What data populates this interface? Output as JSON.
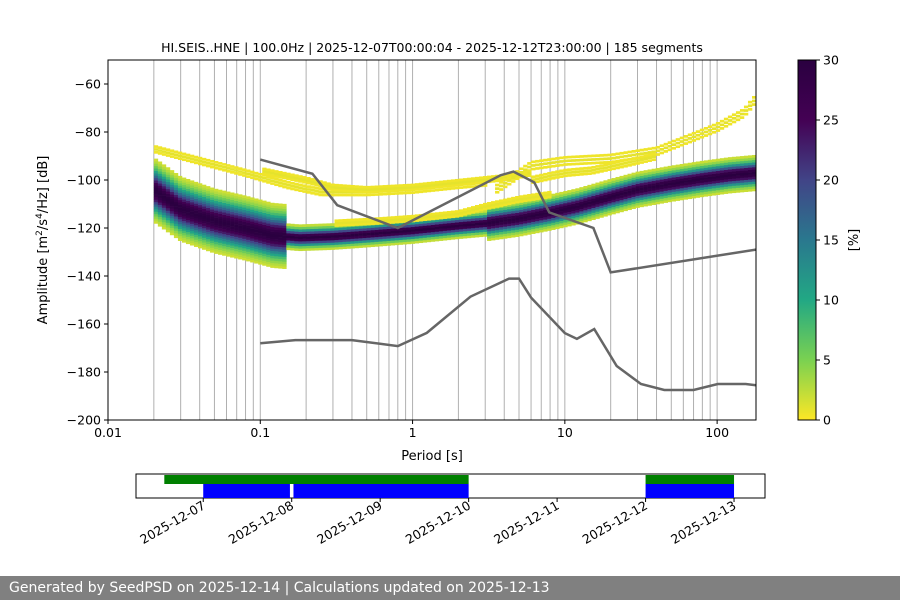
{
  "chart_data": {
    "type": "heatmap",
    "title": "HI.SEIS..HNE | 100.0Hz | 2025-12-07T00:00:04 - 2025-12-12T23:00:00 | 185 segments",
    "xlabel": "Period [s]",
    "ylabel_parts": [
      "Amplitude [m",
      "2",
      "/s",
      "4",
      "/Hz] [dB]"
    ],
    "x_scale": "log",
    "xlim": [
      0.01,
      180
    ],
    "ylim": [
      -200,
      -50
    ],
    "x_ticks": [
      {
        "value": 0.01,
        "label": "0.01"
      },
      {
        "value": 0.1,
        "label": "0.1"
      },
      {
        "value": 1,
        "label": "1"
      },
      {
        "value": 10,
        "label": "10"
      },
      {
        "value": 100,
        "label": "100"
      }
    ],
    "y_ticks": [
      {
        "value": -60,
        "label": "−60"
      },
      {
        "value": -80,
        "label": "−80"
      },
      {
        "value": -100,
        "label": "−100"
      },
      {
        "value": -120,
        "label": "−120"
      },
      {
        "value": -140,
        "label": "−140"
      },
      {
        "value": -160,
        "label": "−160"
      },
      {
        "value": -180,
        "label": "−180"
      },
      {
        "value": -200,
        "label": "−200"
      }
    ],
    "period_gridlines": [
      0.02,
      0.03,
      0.04,
      0.05,
      0.06,
      0.07,
      0.08,
      0.09,
      0.1,
      0.2,
      0.3,
      0.4,
      0.5,
      0.6,
      0.7,
      0.8,
      0.9,
      1,
      2,
      3,
      4,
      5,
      6,
      7,
      8,
      9,
      10,
      20,
      30,
      40,
      50,
      60,
      70,
      80,
      90,
      100
    ],
    "new_high_noise_model": {
      "name": "NHNM",
      "x": [
        0.1,
        0.22,
        0.32,
        0.8,
        3.8,
        4.6,
        6.3,
        7.9,
        15.4,
        20,
        180
      ],
      "y": [
        -91.5,
        -97.4,
        -110.5,
        -120,
        -98,
        -96.5,
        -101,
        -113.5,
        -120,
        -138.5,
        -129
      ]
    },
    "new_low_noise_model": {
      "name": "NLNM",
      "x": [
        0.1,
        0.17,
        0.4,
        0.8,
        1.24,
        2.4,
        4.3,
        5,
        6,
        10,
        12,
        15.6,
        21.9,
        31.6,
        45,
        70,
        101,
        154,
        180
      ],
      "y": [
        -168,
        -166.7,
        -166.7,
        -169.2,
        -163.7,
        -148.6,
        -141.1,
        -141.1,
        -149,
        -163.8,
        -166.2,
        -162.1,
        -177.5,
        -185,
        -187.5,
        -187.5,
        -185,
        -185,
        -185.5
      ]
    },
    "density_ridge": {
      "x": [
        0.02,
        0.03,
        0.05,
        0.08,
        0.12,
        0.18,
        0.3,
        0.5,
        1,
        2,
        3,
        5,
        8,
        12,
        20,
        30,
        50,
        80,
        120,
        180
      ],
      "y": [
        -104,
        -112,
        -117,
        -120,
        -123,
        -124,
        -123.5,
        -122.5,
        -121,
        -119,
        -118,
        -116,
        -113.5,
        -111,
        -107,
        -104,
        -101.5,
        -99.5,
        -98,
        -97
      ]
    },
    "colorbar": {
      "label": "[%]",
      "min": 0,
      "max": 30,
      "ticks": [
        {
          "value": 0,
          "label": "0"
        },
        {
          "value": 5,
          "label": "5"
        },
        {
          "value": 10,
          "label": "10"
        },
        {
          "value": 15,
          "label": "15"
        },
        {
          "value": 20,
          "label": "20"
        },
        {
          "value": 25,
          "label": "25"
        },
        {
          "value": 30,
          "label": "30"
        }
      ],
      "colors": [
        "#fde725",
        "#7ad151",
        "#22a884",
        "#2a788e",
        "#414487",
        "#440154",
        "#2a0040"
      ]
    },
    "coverage": {
      "date_ticks": [
        "2025-12-07",
        "2025-12-08",
        "2025-12-09",
        "2025-12-10",
        "2025-12-11",
        "2025-12-12",
        "2025-12-13"
      ],
      "xlim_days": [
        -0.76,
        6.35
      ],
      "green_bars": [
        [
          -0.44,
          3.0
        ],
        [
          5.0,
          6.0
        ]
      ],
      "blue_bars": [
        [
          0.0,
          0.98
        ],
        [
          1.02,
          3.0
        ],
        [
          5.0,
          6.0
        ]
      ],
      "green_color": "#008000",
      "blue_color": "#0000ff"
    }
  },
  "footer": {
    "text": "Generated by SeedPSD on 2025-12-14 | Calculations updated on 2025-12-13"
  }
}
